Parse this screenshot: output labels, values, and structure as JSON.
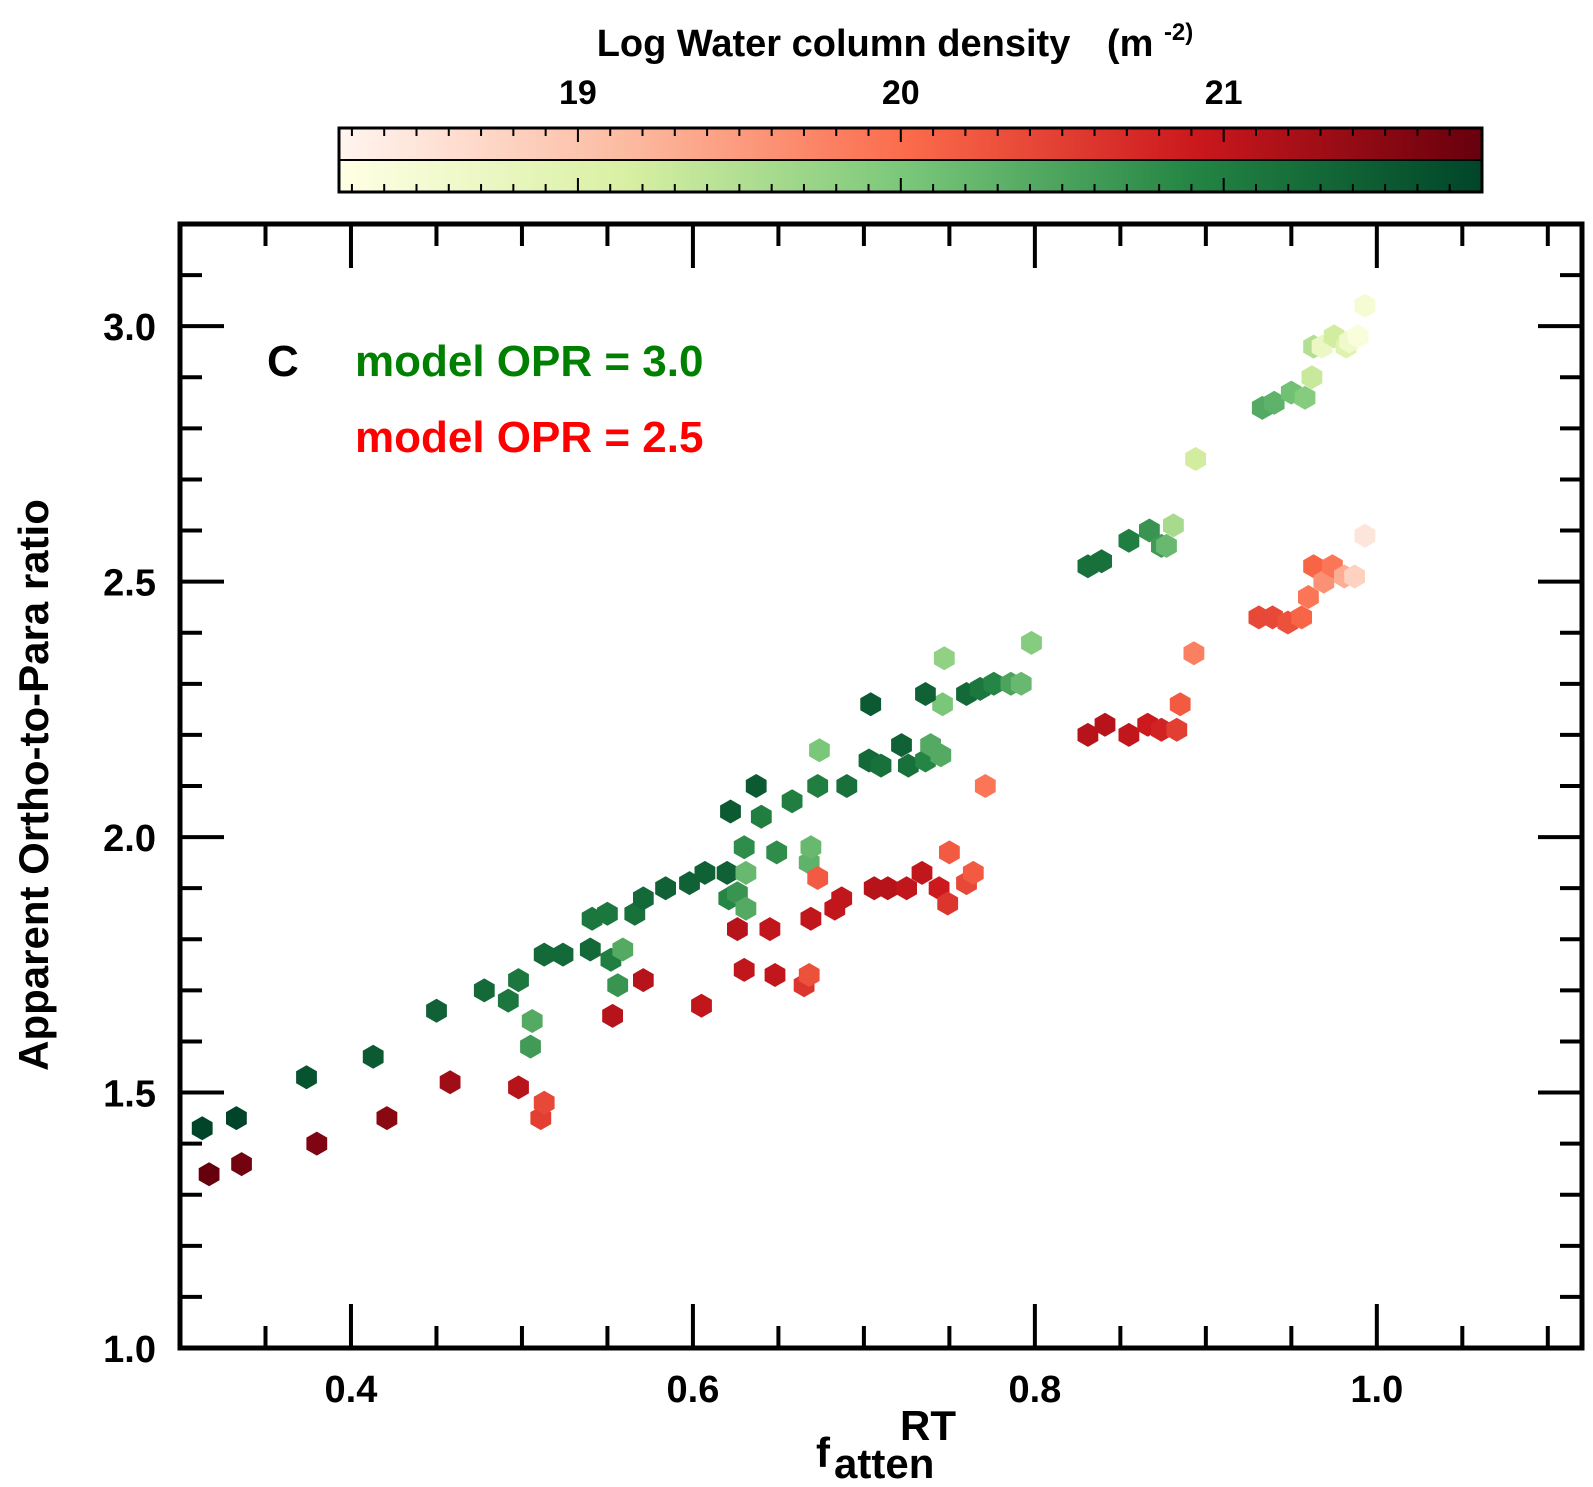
{
  "colorbar": {
    "title": "Log Water column density",
    "unit_base": "(m",
    "unit_exp": "-2)",
    "ticks": [
      19,
      20,
      21
    ],
    "tick_labels": [
      "19",
      "20",
      "21"
    ],
    "range": [
      18.26,
      21.8
    ],
    "red_stops": [
      "#fff5f0",
      "#fcbba1",
      "#fb6a4a",
      "#cb181d",
      "#67000d"
    ],
    "green_stops": [
      "#ffffe5",
      "#d9f0a3",
      "#78c679",
      "#238443",
      "#004529"
    ]
  },
  "chart_data": {
    "type": "scatter",
    "panel_label": "C",
    "xlabel_base": "f",
    "xlabel_sub": "atten",
    "xlabel_sup": "RT",
    "ylabel": "Apparent Ortho-to-Para ratio",
    "xlim": [
      0.3,
      1.12
    ],
    "ylim": [
      1.0,
      3.2
    ],
    "xticks": [
      0.4,
      0.6,
      0.8,
      1.0
    ],
    "xtick_labels": [
      "0.4",
      "0.6",
      "0.8",
      "1.0"
    ],
    "yticks": [
      1.0,
      1.5,
      2.0,
      2.5,
      3.0
    ],
    "ytick_labels": [
      "1.0",
      "1.5",
      "2.0",
      "2.5",
      "3.0"
    ],
    "series": [
      {
        "name": "model OPR = 3.0",
        "color": "#008000",
        "colormap": "green",
        "points": [
          [
            0.313,
            1.43,
            21.8
          ],
          [
            0.333,
            1.45,
            21.8
          ],
          [
            0.374,
            1.53,
            21.6
          ],
          [
            0.413,
            1.57,
            21.5
          ],
          [
            0.45,
            1.66,
            21.4
          ],
          [
            0.478,
            1.7,
            21.3
          ],
          [
            0.492,
            1.68,
            21.1
          ],
          [
            0.498,
            1.72,
            21.1
          ],
          [
            0.506,
            1.64,
            20.4
          ],
          [
            0.505,
            1.59,
            20.6
          ],
          [
            0.513,
            1.77,
            21.3
          ],
          [
            0.524,
            1.77,
            21.3
          ],
          [
            0.54,
            1.78,
            21.3
          ],
          [
            0.552,
            1.76,
            21.0
          ],
          [
            0.556,
            1.71,
            20.7
          ],
          [
            0.559,
            1.78,
            20.4
          ],
          [
            0.541,
            1.84,
            21.1
          ],
          [
            0.55,
            1.85,
            21.1
          ],
          [
            0.566,
            1.85,
            21.2
          ],
          [
            0.571,
            1.88,
            21.3
          ],
          [
            0.584,
            1.9,
            21.4
          ],
          [
            0.598,
            1.91,
            21.4
          ],
          [
            0.607,
            1.93,
            21.4
          ],
          [
            0.62,
            1.93,
            21.4
          ],
          [
            0.621,
            1.88,
            20.9
          ],
          [
            0.626,
            1.89,
            20.7
          ],
          [
            0.631,
            1.86,
            20.4
          ],
          [
            0.631,
            1.93,
            20.2
          ],
          [
            0.63,
            1.98,
            20.8
          ],
          [
            0.622,
            2.05,
            21.5
          ],
          [
            0.637,
            2.1,
            21.5
          ],
          [
            0.64,
            2.04,
            21.0
          ],
          [
            0.649,
            1.97,
            20.8
          ],
          [
            0.658,
            2.07,
            21.0
          ],
          [
            0.668,
            1.95,
            20.3
          ],
          [
            0.669,
            1.98,
            20.2
          ],
          [
            0.673,
            2.1,
            21.0
          ],
          [
            0.674,
            2.17,
            20.0
          ],
          [
            0.69,
            2.1,
            21.2
          ],
          [
            0.703,
            2.15,
            21.3
          ],
          [
            0.71,
            2.14,
            21.2
          ],
          [
            0.704,
            2.26,
            21.5
          ],
          [
            0.722,
            2.18,
            21.4
          ],
          [
            0.726,
            2.14,
            21.2
          ],
          [
            0.736,
            2.15,
            20.9
          ],
          [
            0.739,
            2.18,
            20.4
          ],
          [
            0.745,
            2.16,
            20.4
          ],
          [
            0.746,
            2.26,
            20.0
          ],
          [
            0.747,
            2.35,
            19.8
          ],
          [
            0.736,
            2.28,
            21.4
          ],
          [
            0.76,
            2.28,
            21.3
          ],
          [
            0.768,
            2.29,
            21.1
          ],
          [
            0.776,
            2.3,
            20.9
          ],
          [
            0.786,
            2.3,
            20.5
          ],
          [
            0.792,
            2.3,
            20.2
          ],
          [
            0.798,
            2.38,
            19.9
          ],
          [
            0.831,
            2.53,
            21.2
          ],
          [
            0.839,
            2.54,
            21.2
          ],
          [
            0.855,
            2.58,
            21.0
          ],
          [
            0.867,
            2.6,
            20.7
          ],
          [
            0.874,
            2.57,
            20.6
          ],
          [
            0.877,
            2.57,
            20.2
          ],
          [
            0.881,
            2.61,
            19.6
          ],
          [
            0.894,
            2.74,
            19.2
          ],
          [
            0.933,
            2.84,
            20.4
          ],
          [
            0.94,
            2.85,
            20.3
          ],
          [
            0.95,
            2.87,
            20.1
          ],
          [
            0.958,
            2.86,
            19.9
          ],
          [
            0.962,
            2.9,
            19.3
          ],
          [
            0.963,
            2.96,
            19.5
          ],
          [
            0.968,
            2.96,
            18.7
          ],
          [
            0.975,
            2.98,
            19.2
          ],
          [
            0.982,
            2.96,
            19.0
          ],
          [
            0.984,
            2.97,
            18.6
          ],
          [
            0.989,
            2.98,
            18.4
          ],
          [
            0.993,
            3.04,
            18.5
          ]
        ]
      },
      {
        "name": "model OPR = 2.5",
        "color": "#ff0000",
        "colormap": "red",
        "points": [
          [
            0.317,
            1.34,
            21.8
          ],
          [
            0.336,
            1.36,
            21.7
          ],
          [
            0.38,
            1.4,
            21.6
          ],
          [
            0.421,
            1.45,
            21.5
          ],
          [
            0.458,
            1.52,
            21.3
          ],
          [
            0.498,
            1.51,
            21.1
          ],
          [
            0.511,
            1.45,
            20.5
          ],
          [
            0.513,
            1.48,
            20.4
          ],
          [
            0.553,
            1.65,
            21.1
          ],
          [
            0.571,
            1.72,
            21.1
          ],
          [
            0.605,
            1.67,
            21.0
          ],
          [
            0.626,
            1.82,
            21.1
          ],
          [
            0.63,
            1.74,
            21.0
          ],
          [
            0.645,
            1.82,
            21.0
          ],
          [
            0.648,
            1.73,
            21.0
          ],
          [
            0.665,
            1.71,
            20.6
          ],
          [
            0.668,
            1.73,
            20.3
          ],
          [
            0.669,
            1.84,
            21.0
          ],
          [
            0.673,
            1.92,
            20.2
          ],
          [
            0.683,
            1.86,
            21.0
          ],
          [
            0.687,
            1.88,
            21.0
          ],
          [
            0.706,
            1.9,
            21.1
          ],
          [
            0.714,
            1.9,
            21.1
          ],
          [
            0.725,
            1.9,
            21.0
          ],
          [
            0.734,
            1.93,
            21.0
          ],
          [
            0.744,
            1.9,
            20.9
          ],
          [
            0.749,
            1.87,
            20.6
          ],
          [
            0.75,
            1.97,
            20.2
          ],
          [
            0.76,
            1.91,
            20.4
          ],
          [
            0.764,
            1.93,
            20.2
          ],
          [
            0.771,
            2.1,
            19.9
          ],
          [
            0.831,
            2.2,
            21.1
          ],
          [
            0.841,
            2.22,
            21.1
          ],
          [
            0.855,
            2.2,
            21.0
          ],
          [
            0.866,
            2.22,
            20.9
          ],
          [
            0.874,
            2.21,
            20.8
          ],
          [
            0.883,
            2.21,
            20.5
          ],
          [
            0.885,
            2.26,
            20.2
          ],
          [
            0.893,
            2.36,
            19.8
          ],
          [
            0.931,
            2.43,
            20.4
          ],
          [
            0.939,
            2.43,
            20.4
          ],
          [
            0.948,
            2.42,
            20.3
          ],
          [
            0.956,
            2.43,
            20.1
          ],
          [
            0.96,
            2.47,
            19.9
          ],
          [
            0.963,
            2.53,
            20.1
          ],
          [
            0.969,
            2.5,
            19.6
          ],
          [
            0.974,
            2.53,
            19.9
          ],
          [
            0.981,
            2.51,
            19.3
          ],
          [
            0.987,
            2.51,
            18.8
          ],
          [
            0.993,
            2.59,
            18.5
          ]
        ]
      }
    ]
  }
}
